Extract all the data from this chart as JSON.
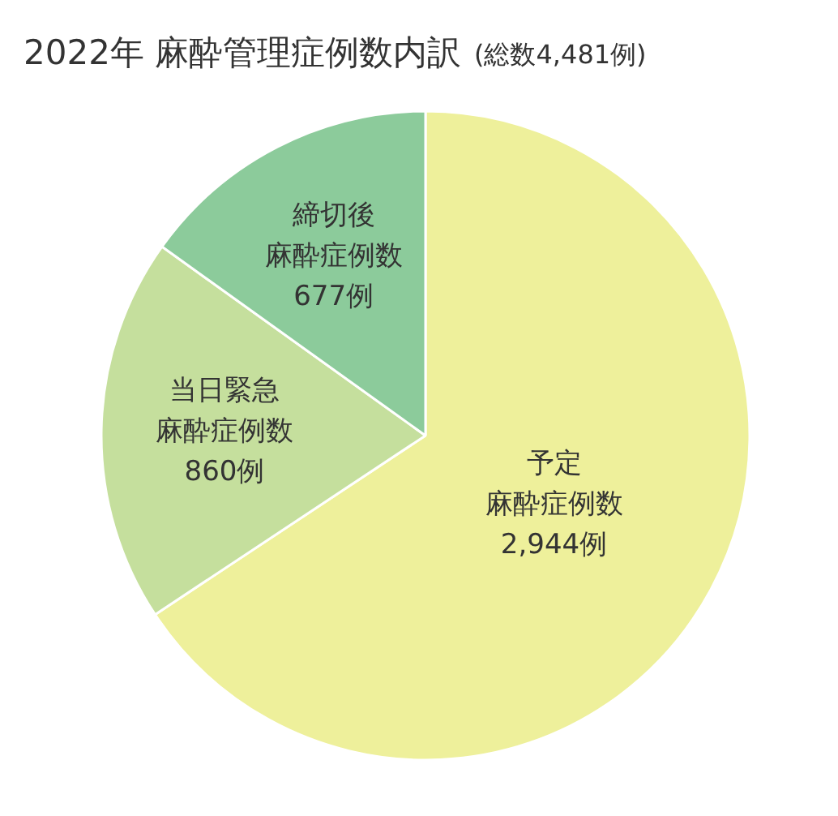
{
  "chart_data": {
    "type": "pie",
    "title": "2022年 麻酔管理症例数内訳",
    "subtitle": "(総数4,481例)",
    "categories": [
      "予定麻酔症例数",
      "当日緊急麻酔症例数",
      "締切後麻酔症例数"
    ],
    "values": [
      2944,
      860,
      677
    ],
    "colors": [
      "#eef09b",
      "#c5df9d",
      "#8ccb9b"
    ],
    "value_labels": [
      "2,944例",
      "860例",
      "677例"
    ]
  }
}
